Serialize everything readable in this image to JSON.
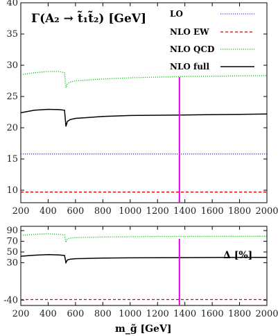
{
  "chart_data": [
    {
      "type": "line",
      "title": "Γ(A₂ → t̃₁t̃₂) [GeV]",
      "xlim": [
        200,
        2000
      ],
      "ylim": [
        8,
        40
      ],
      "xticks": [
        200,
        400,
        600,
        800,
        1000,
        1200,
        1400,
        1600,
        1800,
        2000
      ],
      "yticks": [
        10,
        15,
        20,
        25,
        30,
        35,
        40
      ],
      "legend": "top-right",
      "vline": 1360,
      "series": [
        {
          "name": "LO",
          "color": "#3333ff",
          "style": "dotted",
          "x": [
            200,
            2000
          ],
          "y": [
            15.8,
            15.8
          ]
        },
        {
          "name": "NLO EW",
          "color": "#dd0000",
          "style": "dashed",
          "x": [
            200,
            2000
          ],
          "y": [
            9.7,
            9.7
          ]
        },
        {
          "name": "NLO QCD",
          "color": "#00cc00",
          "style": "dotted",
          "x": [
            200,
            300,
            400,
            480,
            520,
            530,
            540,
            560,
            600,
            800,
            1000,
            1200,
            1400,
            1600,
            1800,
            2000
          ],
          "y": [
            28.5,
            28.8,
            29.0,
            29.0,
            28.8,
            26.4,
            27.0,
            27.3,
            27.5,
            27.8,
            28.0,
            28.1,
            28.2,
            28.25,
            28.3,
            28.35
          ]
        },
        {
          "name": "NLO full",
          "color": "#000000",
          "style": "solid",
          "x": [
            200,
            300,
            400,
            480,
            520,
            530,
            540,
            560,
            600,
            800,
            1000,
            1200,
            1400,
            1600,
            1800,
            2000
          ],
          "y": [
            22.4,
            22.8,
            22.95,
            22.9,
            22.8,
            20.2,
            21.0,
            21.3,
            21.5,
            21.8,
            21.95,
            22.0,
            22.05,
            22.1,
            22.15,
            22.2
          ]
        }
      ]
    },
    {
      "type": "line",
      "label": "Δ [%]",
      "xlabel": "m_g̃ [GeV]",
      "xlim": [
        200,
        2000
      ],
      "ylim": [
        -50,
        98
      ],
      "xticks": [
        200,
        400,
        600,
        800,
        1000,
        1200,
        1400,
        1600,
        1800,
        2000
      ],
      "yticks": [
        -40,
        30,
        50,
        70,
        90
      ],
      "vline": 1360,
      "series": [
        {
          "color": "#dd0000",
          "style": "dashed",
          "x": [
            200,
            2000
          ],
          "y": [
            -39,
            -39
          ]
        },
        {
          "color": "#00cc00",
          "style": "dotted",
          "x": [
            200,
            300,
            400,
            480,
            520,
            530,
            540,
            560,
            600,
            800,
            1000,
            1200,
            1400,
            1600,
            1800,
            2000
          ],
          "y": [
            81,
            83,
            84,
            83,
            82,
            68,
            74,
            76,
            77,
            78,
            78.5,
            79,
            79,
            79.2,
            79.3,
            79.5
          ]
        },
        {
          "color": "#000000",
          "style": "solid",
          "x": [
            200,
            300,
            400,
            480,
            520,
            530,
            540,
            560,
            600,
            800,
            1000,
            1200,
            1400,
            1600,
            1800,
            2000
          ],
          "y": [
            42,
            44,
            45,
            44.5,
            43.5,
            30,
            35,
            36.5,
            37.5,
            38.5,
            39,
            39.3,
            39.5,
            39.7,
            39.9,
            40
          ]
        }
      ]
    }
  ]
}
